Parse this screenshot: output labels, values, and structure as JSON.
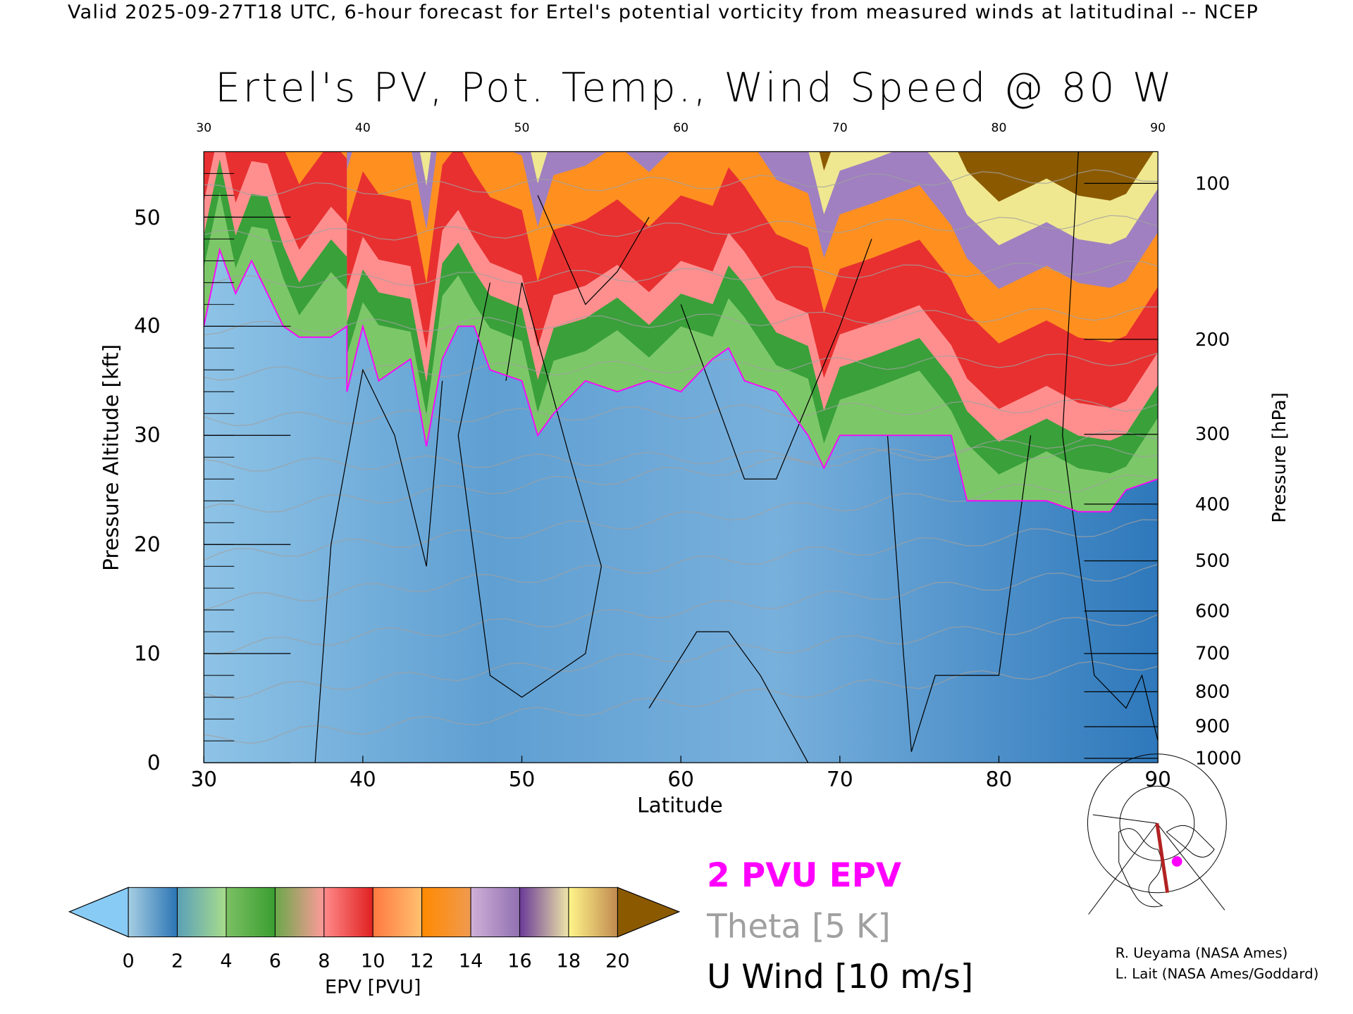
{
  "header": {
    "subtitle": "Valid 2025-09-27T18 UTC, 6-hour forecast for Ertel's potential vorticity from measured winds at latitudinal -- NCEP"
  },
  "chart_data": {
    "type": "heatmap",
    "title": "Ertel's PV, Pot. Temp., Wind Speed @ 80 W",
    "xlabel": "Latitude",
    "ylabel": "Pressure Altitude [kft]",
    "y2label": "Pressure [hPa]",
    "xlim": [
      30,
      90
    ],
    "ylim": [
      0,
      56
    ],
    "x_ticks": [
      "30",
      "40",
      "50",
      "60",
      "70",
      "80",
      "90"
    ],
    "y_ticks": [
      "0",
      "10",
      "20",
      "30",
      "40",
      "50"
    ],
    "y_tick_values": [
      0,
      10,
      20,
      30,
      40,
      50
    ],
    "y2_ticks": [
      {
        "label": "100",
        "kft": 53.1
      },
      {
        "label": "200",
        "kft": 38.8
      },
      {
        "label": "300",
        "kft": 30.1
      },
      {
        "label": "400",
        "kft": 23.7
      },
      {
        "label": "500",
        "kft": 18.5
      },
      {
        "label": "600",
        "kft": 13.9
      },
      {
        "label": "700",
        "kft": 10.0
      },
      {
        "label": "800",
        "kft": 6.5
      },
      {
        "label": "900",
        "kft": 3.3
      },
      {
        "label": "1000",
        "kft": 0.4
      }
    ],
    "pv2_line": [
      [
        30,
        40
      ],
      [
        31,
        47
      ],
      [
        32,
        43
      ],
      [
        33,
        46
      ],
      [
        34,
        43
      ],
      [
        35,
        40
      ],
      [
        36,
        39
      ],
      [
        38,
        39
      ],
      [
        39,
        40
      ],
      [
        39,
        34
      ],
      [
        40,
        40
      ],
      [
        41,
        35
      ],
      [
        43,
        37
      ],
      [
        44,
        29
      ],
      [
        45,
        37
      ],
      [
        46,
        40
      ],
      [
        47,
        40
      ],
      [
        48,
        36
      ],
      [
        50,
        35
      ],
      [
        51,
        30
      ],
      [
        52,
        32
      ],
      [
        54,
        35
      ],
      [
        56,
        34
      ],
      [
        58,
        35
      ],
      [
        60,
        34
      ],
      [
        62,
        37
      ],
      [
        63,
        38
      ],
      [
        64,
        35
      ],
      [
        66,
        34
      ],
      [
        68,
        30
      ],
      [
        69,
        27
      ],
      [
        70,
        30
      ],
      [
        72,
        30
      ],
      [
        75,
        30
      ],
      [
        77,
        30
      ],
      [
        78,
        24
      ],
      [
        80,
        24
      ],
      [
        83,
        24
      ],
      [
        85,
        23
      ],
      [
        87,
        23
      ],
      [
        88,
        25
      ],
      [
        90,
        26
      ]
    ],
    "colorbar": {
      "label": "EPV [PVU]",
      "ticks": [
        "0",
        "2",
        "4",
        "6",
        "8",
        "10",
        "12",
        "14",
        "16",
        "18",
        "20"
      ],
      "under_color": "#88ccf5",
      "over_color": "#8b5a00",
      "segments": [
        [
          "#a6cee3",
          "#2b74b4"
        ],
        [
          "#5aa0b8",
          "#a8dc8c"
        ],
        [
          "#7cc064",
          "#3a9e30"
        ],
        [
          "#6aa84a",
          "#ff9a9a"
        ],
        [
          "#ff8a8a",
          "#e02020"
        ],
        [
          "#ff7a40",
          "#ffc070"
        ],
        [
          "#ff8a00",
          "#f09a50"
        ],
        [
          "#d0b0d8",
          "#9070b0"
        ],
        [
          "#6a3a98",
          "#eee6a8"
        ],
        [
          "#fff58a",
          "#c08a50"
        ]
      ]
    },
    "legend": [
      {
        "label": "2 PVU EPV",
        "color": "#ff00ff"
      },
      {
        "label": "Theta [5 K]",
        "color": "#a0a0a0"
      },
      {
        "label": "U Wind [10 m/s]",
        "color": "#000000"
      }
    ]
  },
  "credits": [
    "R. Ueyama (NASA Ames)",
    "L. Lait (NASA Ames/Goddard)"
  ]
}
